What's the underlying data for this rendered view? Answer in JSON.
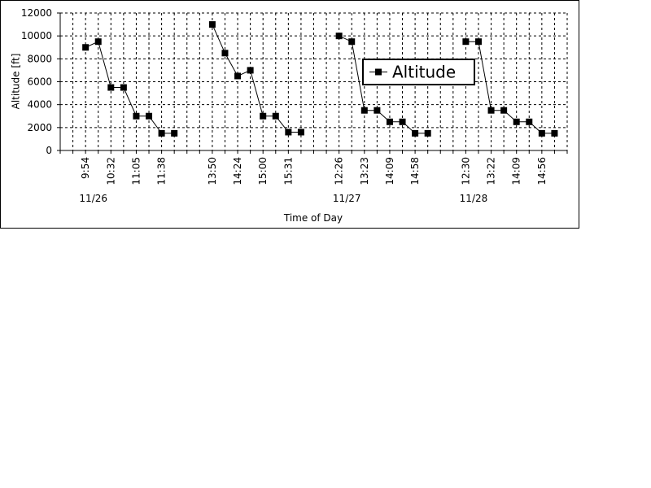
{
  "chart_data": {
    "type": "line",
    "x_label": "Time of Day",
    "y_label": "Altitude [ft]",
    "categories": [
      null,
      null,
      "9:54",
      null,
      "10:32",
      null,
      "11:05",
      null,
      "11:38",
      null,
      null,
      null,
      "13:50",
      null,
      "14:24",
      null,
      "15:00",
      null,
      "15:31",
      null,
      null,
      null,
      "12:26",
      null,
      "13:23",
      null,
      "14:09",
      null,
      "14:58",
      null,
      null,
      null,
      "12:30",
      null,
      "13:22",
      null,
      "14:09",
      null,
      "14:56",
      null,
      null
    ],
    "date_labels": [
      null,
      null,
      null,
      "11/26",
      null,
      null,
      null,
      null,
      null,
      null,
      null,
      null,
      null,
      null,
      null,
      null,
      null,
      null,
      null,
      null,
      null,
      null,
      null,
      "11/27",
      null,
      null,
      null,
      null,
      null,
      null,
      null,
      null,
      null,
      "11/28",
      null,
      null,
      null,
      null,
      null,
      null,
      null
    ],
    "series": [
      {
        "name": "Altitude",
        "color": "#000000",
        "values": [
          null,
          null,
          9000,
          9500,
          5500,
          5500,
          3000,
          3000,
          1500,
          1500,
          null,
          null,
          11000,
          8500,
          6500,
          7000,
          3000,
          3000,
          1600,
          1600,
          null,
          null,
          10000,
          9500,
          3500,
          3500,
          2500,
          2500,
          1500,
          1500,
          null,
          null,
          9500,
          9500,
          3500,
          3500,
          2500,
          2500,
          1500,
          1500,
          null
        ]
      }
    ],
    "ylim": [
      0,
      12000
    ],
    "yticks": [
      0,
      2000,
      4000,
      6000,
      8000,
      10000,
      12000
    ],
    "grid": true,
    "legend": "upper right"
  }
}
